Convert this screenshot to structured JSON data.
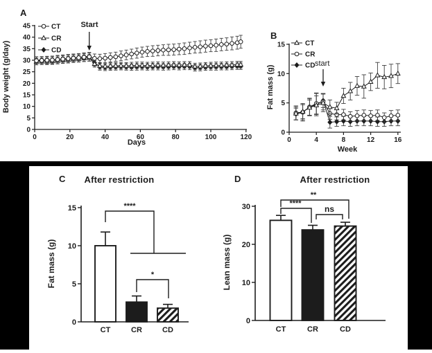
{
  "panels": {
    "a": {
      "letter": "A",
      "ylabel": "Body weight (g/day)",
      "xlabel": "Days",
      "annotation": "Start"
    },
    "b": {
      "letter": "B",
      "ylabel": "Fat mass (g)",
      "xlabel": "Week",
      "annotation": "start"
    },
    "c": {
      "letter": "C",
      "title": "After restriction",
      "ylabel": "Fat mass (g)"
    },
    "d": {
      "letter": "D",
      "title": "After restriction",
      "ylabel": "Lean mass (g)"
    }
  },
  "colors": {
    "ink": "#1c1c1c",
    "error": "#3d3d3d",
    "background": "#ffffff",
    "frame": "#000000"
  },
  "chart_data": [
    {
      "id": "A",
      "type": "line",
      "xlabel": "Days",
      "ylabel": "Body weight (g/day)",
      "xlim": [
        0,
        120
      ],
      "ylim": [
        0,
        45
      ],
      "xticks": [
        0,
        20,
        40,
        60,
        80,
        100,
        120
      ],
      "yticks": [
        0,
        5,
        10,
        15,
        20,
        25,
        30,
        35,
        40,
        45
      ],
      "annotation": {
        "text": "Start",
        "x": 31
      },
      "legend_position": "top-left",
      "series": [
        {
          "name": "CT",
          "marker": "open-circle",
          "x": [
            1,
            4,
            7,
            10,
            13,
            16,
            19,
            22,
            25,
            28,
            31,
            34,
            37,
            40,
            43,
            46,
            49,
            52,
            55,
            58,
            61,
            64,
            67,
            70,
            73,
            76,
            79,
            82,
            85,
            88,
            91,
            94,
            97,
            100,
            103,
            106,
            109,
            112,
            115,
            117
          ],
          "y": [
            29.8,
            29.9,
            30.0,
            30.1,
            30.3,
            30.5,
            30.7,
            30.9,
            31.1,
            31.3,
            31.5,
            30.8,
            30.7,
            30.9,
            31.2,
            31.5,
            31.9,
            32.3,
            32.7,
            33.1,
            33.5,
            33.8,
            34.0,
            34.2,
            34.4,
            34.5,
            34.6,
            34.8,
            35.0,
            35.3,
            35.6,
            35.8,
            36.1,
            36.3,
            36.5,
            36.8,
            37.0,
            37.3,
            37.6,
            38.0
          ],
          "err": [
            1.7,
            1.7,
            1.7,
            1.7,
            1.8,
            1.8,
            1.8,
            1.8,
            1.8,
            1.9,
            1.9,
            1.9,
            1.9,
            2.0,
            2.0,
            2.0,
            2.1,
            2.1,
            2.1,
            2.2,
            2.2,
            2.2,
            2.3,
            2.3,
            2.3,
            2.4,
            2.4,
            2.4,
            2.5,
            2.5,
            2.5,
            2.6,
            2.6,
            2.6,
            2.7,
            2.7,
            2.7,
            2.8,
            2.8,
            2.8
          ]
        },
        {
          "name": "CR",
          "marker": "open-triangle",
          "x": [
            1,
            4,
            7,
            10,
            13,
            16,
            19,
            22,
            25,
            28,
            31,
            34,
            37,
            40,
            43,
            46,
            49,
            52,
            55,
            58,
            61,
            64,
            67,
            70,
            73,
            76,
            79,
            82,
            85,
            88,
            91,
            94,
            97,
            100,
            103,
            106,
            109,
            112,
            115,
            117
          ],
          "y": [
            29.4,
            29.5,
            29.5,
            29.6,
            29.8,
            30.0,
            30.2,
            30.4,
            30.6,
            30.9,
            31.0,
            28.4,
            27.6,
            27.4,
            27.5,
            27.6,
            27.7,
            27.6,
            27.7,
            27.8,
            27.8,
            27.7,
            27.8,
            27.9,
            27.8,
            27.9,
            28.0,
            27.9,
            28.0,
            28.0,
            27.3,
            27.4,
            27.6,
            27.7,
            27.8,
            27.8,
            27.9,
            28.0,
            28.1,
            28.1
          ],
          "err": 1.4
        },
        {
          "name": "CD",
          "marker": "filled-diamond",
          "x": [
            1,
            4,
            7,
            10,
            13,
            16,
            19,
            22,
            25,
            28,
            31,
            34,
            37,
            40,
            43,
            46,
            49,
            52,
            55,
            58,
            61,
            64,
            67,
            70,
            73,
            76,
            79,
            82,
            85,
            88,
            91,
            94,
            97,
            100,
            103,
            106,
            109,
            112,
            115,
            117
          ],
          "y": [
            30.0,
            30.1,
            30.1,
            30.2,
            30.4,
            30.6,
            30.8,
            31.0,
            31.2,
            31.5,
            31.7,
            28.9,
            27.1,
            26.9,
            27.0,
            27.1,
            27.2,
            27.1,
            27.0,
            27.1,
            27.2,
            27.1,
            27.2,
            27.2,
            27.1,
            27.2,
            27.3,
            27.2,
            27.3,
            27.3,
            26.7,
            26.8,
            27.0,
            27.1,
            27.1,
            27.2,
            27.2,
            27.3,
            27.4,
            27.4
          ],
          "err": 1.4
        }
      ]
    },
    {
      "id": "B",
      "type": "line",
      "xlabel": "Week",
      "ylabel": "Fat mass (g)",
      "xlim": [
        0,
        16
      ],
      "ylim": [
        0,
        15
      ],
      "xticks": [
        0,
        4,
        8,
        12,
        16
      ],
      "yticks": [
        0,
        5,
        10,
        15
      ],
      "annotation": {
        "text": "start",
        "x": 5
      },
      "legend_position": "top-left",
      "series": [
        {
          "name": "CT",
          "marker": "open-triangle",
          "x": [
            1,
            2,
            3,
            4,
            5,
            6,
            7,
            8,
            9,
            10,
            11,
            12,
            13,
            14,
            15,
            16
          ],
          "y": [
            3.2,
            3.5,
            4.2,
            4.6,
            5.0,
            4.3,
            4.1,
            6.2,
            7.0,
            7.9,
            7.8,
            8.6,
            9.7,
            9.4,
            9.6,
            10.0
          ],
          "err": [
            1.1,
            1.2,
            1.3,
            1.6,
            1.5,
            1.2,
            1.0,
            1.3,
            1.5,
            1.6,
            2.0,
            1.5,
            2.2,
            2.0,
            2.0,
            1.7
          ]
        },
        {
          "name": "CR",
          "marker": "open-circle",
          "x": [
            1,
            2,
            3,
            4,
            5,
            6,
            7,
            8,
            9,
            10,
            11,
            12,
            13,
            14,
            15,
            16
          ],
          "y": [
            3.3,
            3.4,
            4.3,
            4.9,
            5.2,
            3.2,
            3.0,
            3.0,
            2.7,
            2.8,
            2.9,
            2.8,
            2.9,
            2.5,
            2.8,
            2.9
          ],
          "err": [
            1.2,
            1.5,
            1.5,
            1.8,
            1.4,
            1.0,
            0.9,
            0.9,
            0.8,
            0.9,
            0.9,
            0.9,
            0.9,
            0.8,
            0.9,
            0.9
          ]
        },
        {
          "name": "CD",
          "marker": "filled-diamond",
          "x": [
            1,
            2,
            3,
            4,
            5,
            6,
            7,
            8,
            9,
            10,
            11,
            12,
            13,
            14,
            15,
            16
          ],
          "y": [
            3.1,
            3.4,
            4.3,
            4.7,
            5.4,
            1.7,
            1.8,
            1.9,
            1.8,
            1.9,
            1.9,
            1.9,
            1.8,
            1.8,
            1.9,
            1.9
          ],
          "err": [
            1.0,
            1.3,
            1.4,
            1.9,
            1.2,
            1.0,
            0.8,
            0.8,
            0.8,
            0.8,
            0.8,
            0.8,
            0.8,
            0.8,
            0.8,
            0.8
          ]
        }
      ]
    },
    {
      "id": "C",
      "type": "bar",
      "title": "After restriction",
      "ylabel": "Fat mass (g)",
      "categories": [
        "CT",
        "CR",
        "CD"
      ],
      "values": [
        10.0,
        2.6,
        1.8
      ],
      "errors": [
        1.8,
        0.8,
        0.5
      ],
      "bar_styles": [
        "open",
        "solid",
        "hatched"
      ],
      "ylim": [
        0,
        15
      ],
      "yticks": [
        0,
        5,
        10,
        15
      ],
      "significance": [
        {
          "label": "****",
          "between": [
            "CT",
            "CR+CD"
          ]
        },
        {
          "label": "*",
          "between": [
            "CR",
            "CD"
          ]
        }
      ]
    },
    {
      "id": "D",
      "type": "bar",
      "title": "After restriction",
      "ylabel": "Lean mass (g)",
      "categories": [
        "CT",
        "CR",
        "CD"
      ],
      "values": [
        26.3,
        23.8,
        24.8
      ],
      "errors": [
        1.3,
        1.2,
        1.0
      ],
      "bar_styles": [
        "open",
        "solid",
        "hatched"
      ],
      "ylim": [
        0,
        30
      ],
      "yticks": [
        0,
        10,
        20,
        30
      ],
      "significance": [
        {
          "label": "****",
          "between": [
            "CT",
            "CR"
          ]
        },
        {
          "label": "ns",
          "between": [
            "CR",
            "CD"
          ]
        },
        {
          "label": "**",
          "between": [
            "CT",
            "CD"
          ]
        }
      ]
    }
  ]
}
